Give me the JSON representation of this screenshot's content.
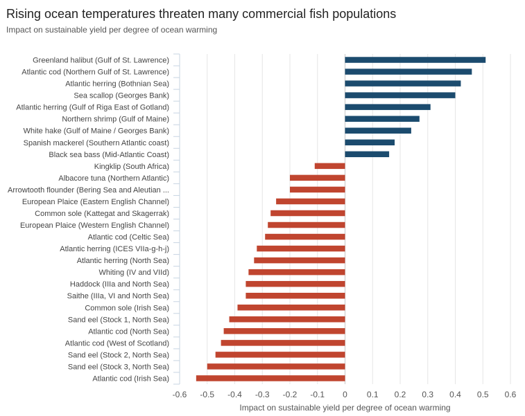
{
  "chart_data": {
    "type": "bar",
    "orientation": "horizontal",
    "title": "Rising ocean temperatures threaten many commercial fish populations",
    "subtitle": "Impact on sustainable yield per degree of ocean warming",
    "xlabel": "Impact on sustainable yield per degree of ocean warming",
    "xlim": [
      -0.6,
      0.6
    ],
    "xticks": [
      -0.6,
      -0.5,
      -0.4,
      -0.3,
      -0.2,
      -0.1,
      0,
      0.1,
      0.2,
      0.3,
      0.4,
      0.5,
      0.6
    ],
    "xtick_labels": [
      "-0.6",
      "-0.5",
      "-0.4",
      "-0.3",
      "-0.2",
      "-0.1",
      "0",
      "0.1",
      "0.2",
      "0.3",
      "0.4",
      "0.5",
      "0.6"
    ],
    "grid": "vertical",
    "colors": {
      "positive": "#1b4b6e",
      "negative": "#c0452f"
    },
    "categories": [
      "Greenland halibut (Gulf of St. Lawrence)",
      "Atlantic cod (Northern Gulf of St. Lawrence)",
      "Atlantic herring (Bothnian Sea)",
      "Sea scallop (Georges Bank)",
      "Atlantic herring (Gulf of Riga East of Gotland)",
      "Northern shrimp (Gulf of Maine)",
      "White hake (Gulf of Maine / Georges Bank)",
      "Spanish mackerel (Southern Atlantic coast)",
      "Black sea bass (Mid-Atlantic Coast)",
      "Kingklip (South Africa)",
      "Albacore tuna (Northern Atlantic)",
      "Arrowtooth flounder (Bering Sea and Aleutian ...",
      "European Plaice (Eastern English Channel)",
      "Common sole (Kattegat and Skagerrak)",
      "European Plaice (Western English Channel)",
      "Atlantic cod (Celtic Sea)",
      "Atlantic herring (ICES VIIa-g-h-j)",
      "Atlantic herring (North Sea)",
      "Whiting (IV and VIId)",
      "Haddock (IIIa and North Sea)",
      "Saithe (IIIa, VI and North Sea)",
      "Common sole (Irish Sea)",
      "Sand eel (Stock 1, North Sea)",
      "Atlantic cod (North Sea)",
      "Atlantic cod (West of Scotland)",
      "Sand eel (Stock 2, North Sea)",
      "Sand eel (Stock 3, North Sea)",
      "Atlantic cod (Irish Sea)"
    ],
    "values": [
      0.51,
      0.46,
      0.42,
      0.4,
      0.31,
      0.27,
      0.24,
      0.18,
      0.16,
      -0.11,
      -0.2,
      -0.2,
      -0.25,
      -0.27,
      -0.28,
      -0.29,
      -0.32,
      -0.33,
      -0.35,
      -0.36,
      -0.36,
      -0.39,
      -0.42,
      -0.44,
      -0.45,
      -0.47,
      -0.5,
      -0.54
    ]
  }
}
